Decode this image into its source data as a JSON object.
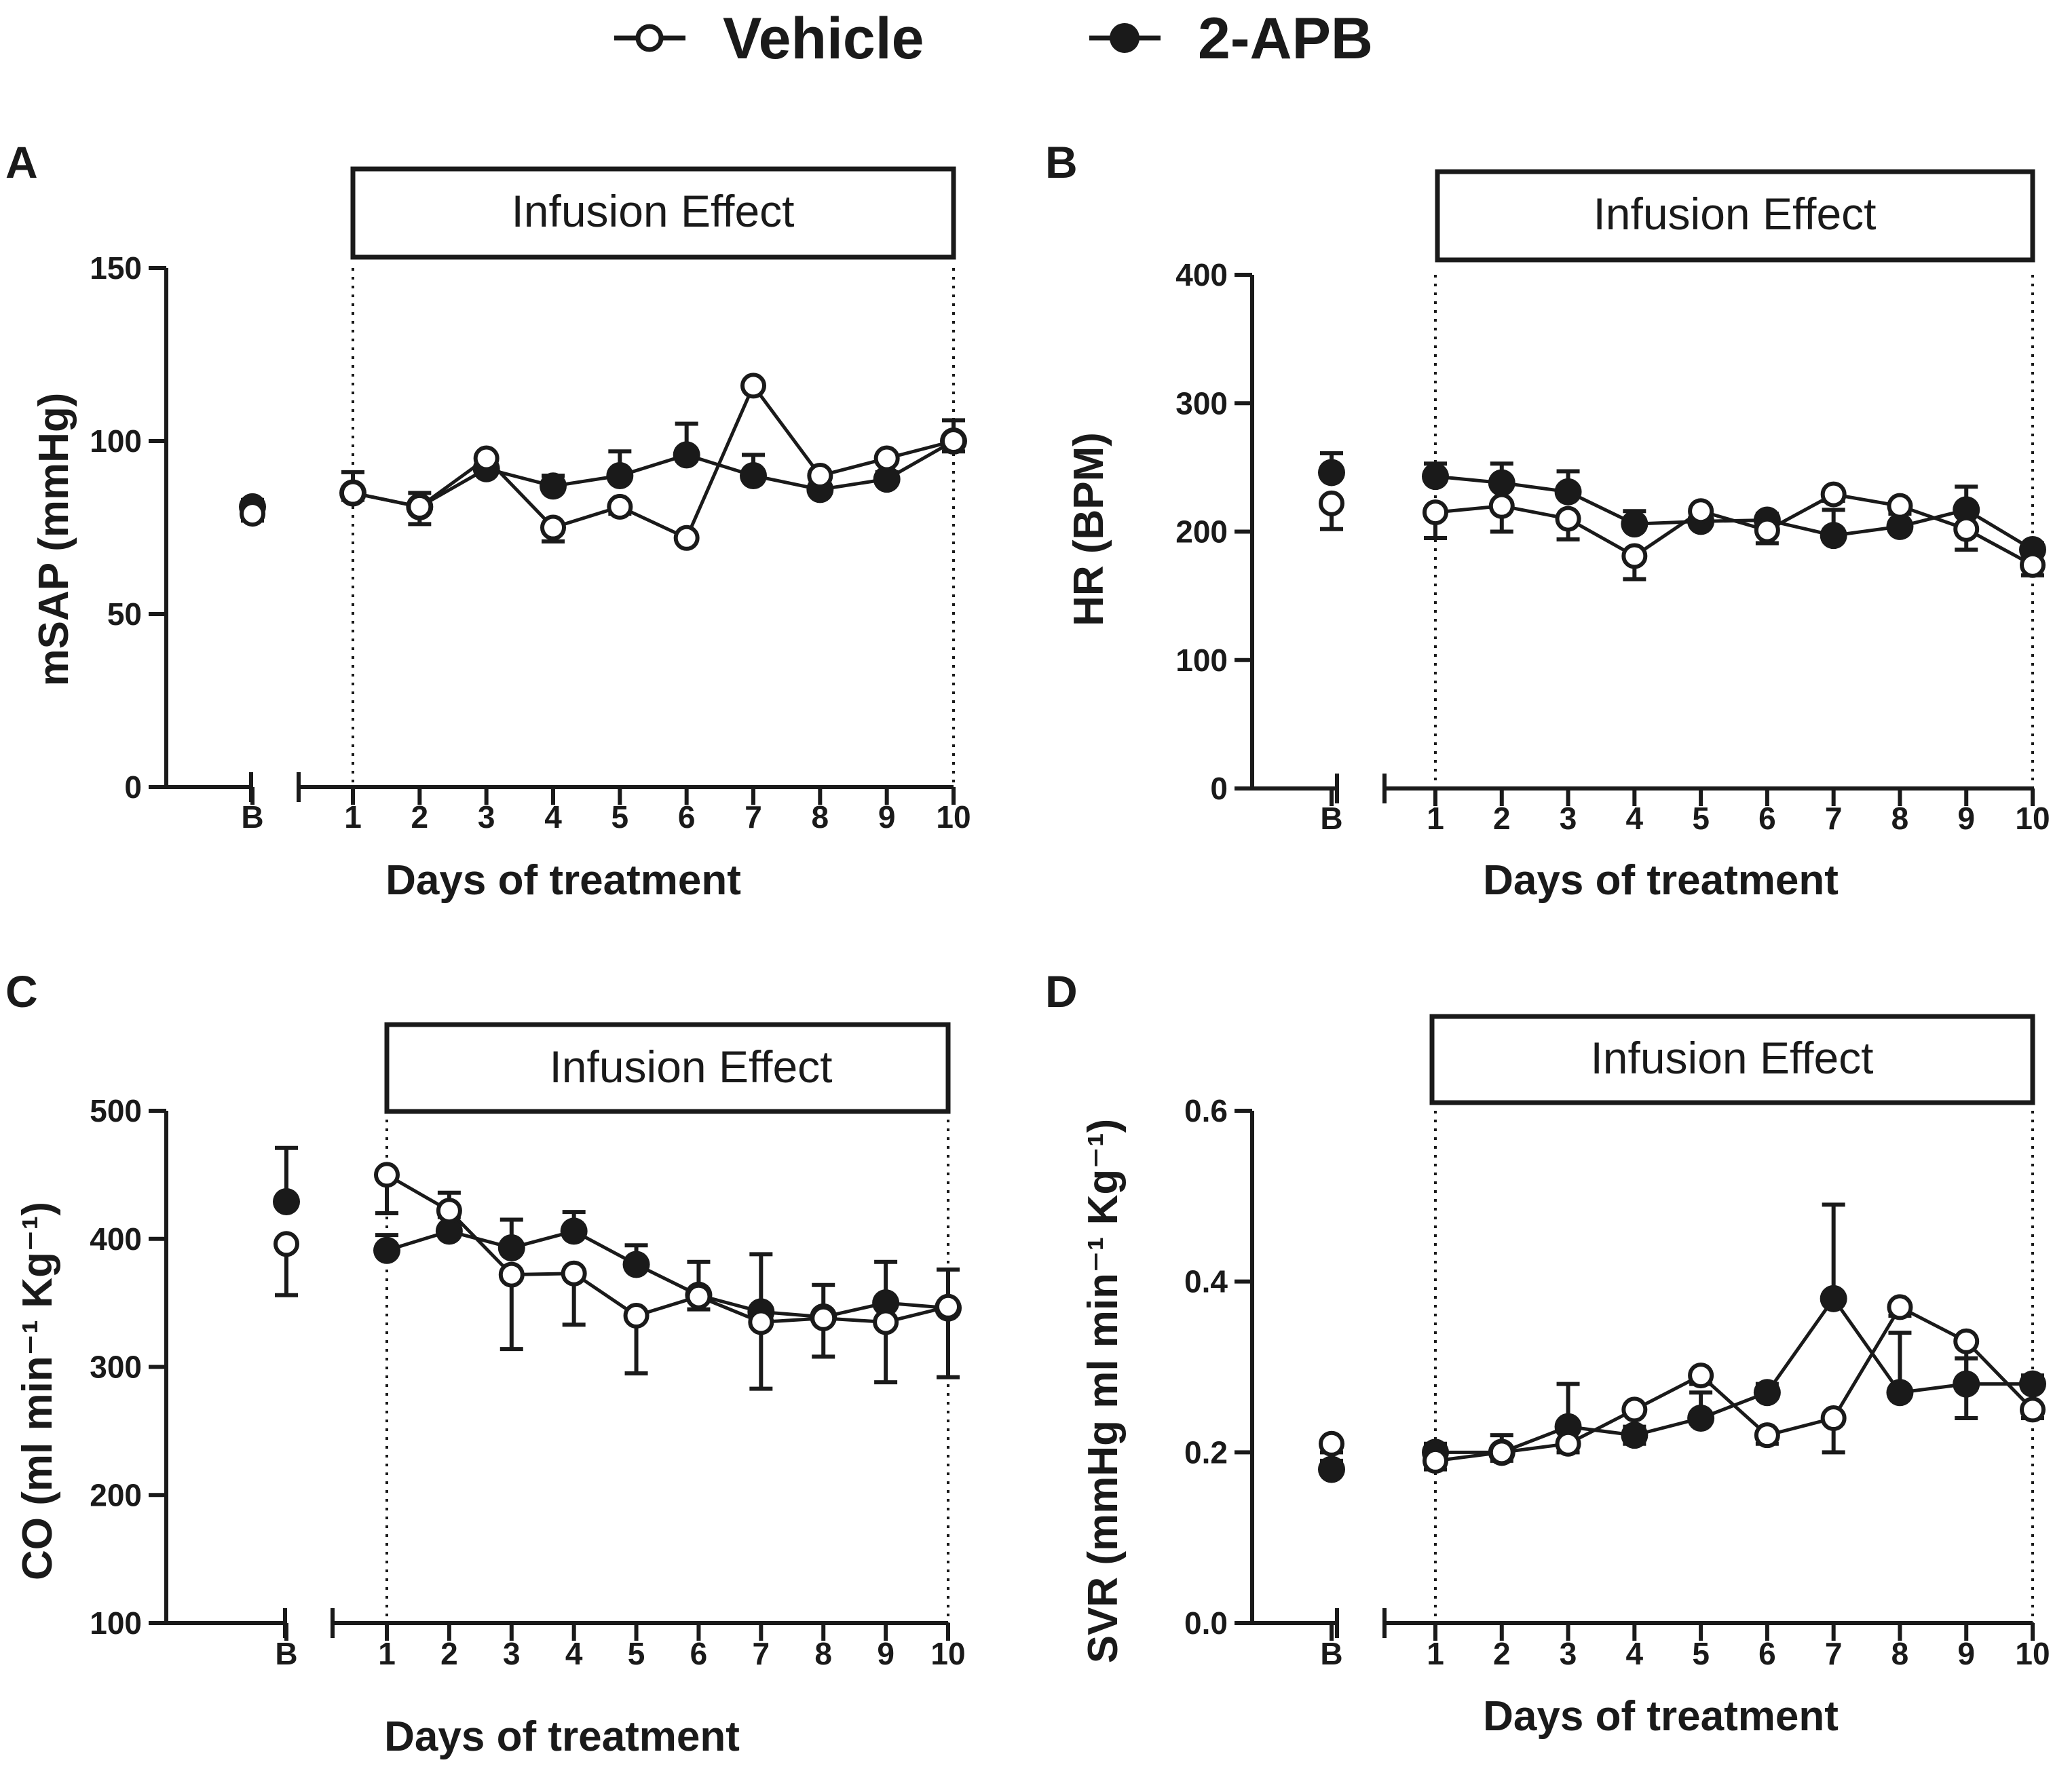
{
  "legend": {
    "vehicle_label": "Vehicle",
    "apb_label": "2-APB"
  },
  "chart_data": [
    {
      "type": "line",
      "panel": "A",
      "title": "Infusion  Effect",
      "xlabel": "Days of treatment",
      "ylabel": "mSAP (mmHg)",
      "ylim": [
        0,
        150
      ],
      "yticks": [
        0,
        50,
        100,
        150
      ],
      "categories": [
        "B",
        "1",
        "2",
        "3",
        "4",
        "5",
        "6",
        "7",
        "8",
        "9",
        "10"
      ],
      "series": [
        {
          "name": "Vehicle",
          "marker": "open-circle",
          "values": [
            79,
            85,
            81,
            95,
            75,
            81,
            72,
            116,
            90,
            95,
            100
          ],
          "errors": [
            2,
            2,
            5,
            3,
            4,
            2,
            1,
            1,
            1,
            1,
            3
          ]
        },
        {
          "name": "2-APB",
          "marker": "filled-circle",
          "values": [
            81,
            85,
            81,
            92,
            87,
            90,
            96,
            90,
            86,
            89,
            100
          ],
          "errors": [
            2,
            6,
            4,
            4,
            3,
            7,
            9,
            6,
            3,
            2,
            6
          ]
        }
      ]
    },
    {
      "type": "line",
      "panel": "B",
      "title": "Infusion  Effect",
      "xlabel": "Days of treatment",
      "ylabel": "HR (BPM)",
      "ylim": [
        0,
        400
      ],
      "yticks": [
        0,
        100,
        200,
        300,
        400
      ],
      "categories": [
        "B",
        "1",
        "2",
        "3",
        "4",
        "5",
        "6",
        "7",
        "8",
        "9",
        "10"
      ],
      "series": [
        {
          "name": "Vehicle",
          "marker": "open-circle",
          "values": [
            222,
            215,
            220,
            210,
            181,
            216,
            201,
            229,
            220,
            202,
            174
          ],
          "errors": [
            20,
            20,
            20,
            16,
            18,
            5,
            10,
            5,
            5,
            16,
            8
          ]
        },
        {
          "name": "2-APB",
          "marker": "filled-circle",
          "values": [
            246,
            243,
            238,
            231,
            206,
            208,
            209,
            197,
            204,
            217,
            186
          ],
          "errors": [
            15,
            10,
            15,
            16,
            10,
            5,
            5,
            20,
            10,
            18,
            5
          ]
        }
      ]
    },
    {
      "type": "line",
      "panel": "C",
      "title": "Infusion Effect",
      "xlabel": "Days of treatment",
      "ylabel": "CO (ml min⁻¹ Kg⁻¹)",
      "ylim": [
        100,
        500
      ],
      "yticks": [
        100,
        200,
        300,
        400,
        500
      ],
      "categories": [
        "B",
        "1",
        "2",
        "3",
        "4",
        "5",
        "6",
        "7",
        "8",
        "9",
        "10"
      ],
      "series": [
        {
          "name": "Vehicle",
          "marker": "open-circle",
          "values": [
            396,
            450,
            422,
            372,
            373,
            340,
            355,
            335,
            338,
            335,
            347
          ],
          "errors": [
            40,
            30,
            5,
            58,
            40,
            45,
            10,
            52,
            30,
            47,
            55
          ]
        },
        {
          "name": "2-APB",
          "marker": "filled-circle",
          "values": [
            429,
            391,
            406,
            393,
            406,
            380,
            356,
            343,
            339,
            350,
            346
          ],
          "errors": [
            42,
            12,
            30,
            22,
            15,
            15,
            26,
            45,
            25,
            32,
            30
          ]
        }
      ]
    },
    {
      "type": "line",
      "panel": "D",
      "title": "Infusion Effect",
      "xlabel": "Days of treatment",
      "ylabel": "SVR (mmHg ml min⁻¹ Kg⁻¹)",
      "ylim": [
        0,
        0.6
      ],
      "yticks": [
        "0.0",
        "0.2",
        "0.4",
        "0.6"
      ],
      "categories": [
        "B",
        "1",
        "2",
        "3",
        "4",
        "5",
        "6",
        "7",
        "8",
        "9",
        "10"
      ],
      "series": [
        {
          "name": "Vehicle",
          "marker": "open-circle",
          "values": [
            0.21,
            0.19,
            0.2,
            0.21,
            0.25,
            0.29,
            0.22,
            0.24,
            0.37,
            0.33,
            0.25
          ],
          "errors": [
            0.02,
            0.01,
            0.01,
            0.01,
            0.04,
            0.01,
            0.01,
            0.04,
            0.01,
            0.09,
            0.01
          ]
        },
        {
          "name": "2-APB",
          "marker": "filled-circle",
          "values": [
            0.18,
            0.2,
            0.2,
            0.23,
            0.22,
            0.24,
            0.27,
            0.38,
            0.27,
            0.28,
            0.28
          ],
          "errors": [
            0.02,
            0.01,
            0.02,
            0.05,
            0.01,
            0.03,
            0.01,
            0.11,
            0.07,
            0.03,
            0.01
          ]
        }
      ]
    }
  ]
}
